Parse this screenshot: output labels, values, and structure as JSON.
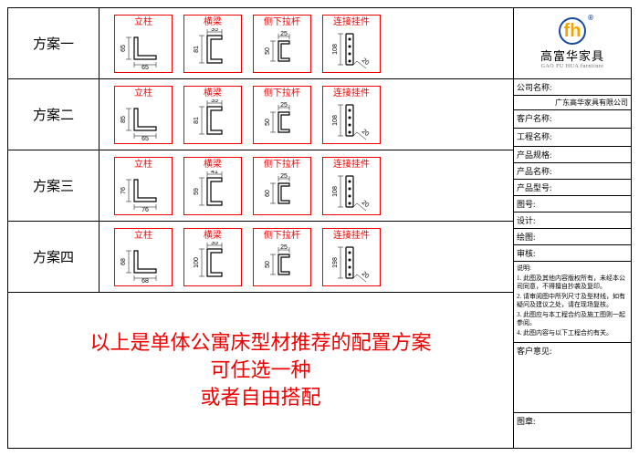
{
  "plans": [
    {
      "label": "方案一",
      "pillar_w": 65,
      "pillar_h": 65,
      "beam_w": 35,
      "beam_h": 81,
      "brace_w": 25,
      "brace_h": 50,
      "conn_w": 20,
      "conn_h": 108
    },
    {
      "label": "方案二",
      "pillar_w": 65,
      "pillar_h": 85,
      "beam_w": 35,
      "beam_h": 81,
      "brace_w": 25,
      "brace_h": 50,
      "conn_w": 20,
      "conn_h": 108
    },
    {
      "label": "方案三",
      "pillar_w": 76,
      "pillar_h": 76,
      "beam_w": 41,
      "beam_h": 59,
      "brace_w": 25,
      "brace_h": 60,
      "conn_w": 20,
      "conn_h": 108
    },
    {
      "label": "方案四",
      "pillar_w": 68,
      "pillar_h": 68,
      "beam_w": 35,
      "beam_h": 100,
      "brace_w": 25,
      "brace_h": 50,
      "conn_w": 20,
      "conn_h": 198
    }
  ],
  "component_titles": {
    "pillar": "立柱",
    "beam": "横梁",
    "brace": "侧下拉杆",
    "connector": "连接挂件"
  },
  "footer": {
    "line1": "以上是单体公寓床型材推荐的配置方案",
    "line2": "可任选一种",
    "line3": "或者自由搭配"
  },
  "logo": {
    "mark": "fh",
    "cn": "高富华家具",
    "en": "GAO FU HUA furniture"
  },
  "side": {
    "company_label": "公司名称:",
    "company_value": "广东高华家具有限公司",
    "customer_label": "客户名称:",
    "project_label": "工程名称:",
    "spec_label": "产品规格:",
    "product_label": "产品名称:",
    "type_label": "产品型号:",
    "drawing_no_label": "图号:",
    "designer_label": "设计:",
    "drafter_label": "绘图:",
    "checker_label": "审核:",
    "notes_title": "说明:",
    "note1": "1. 此图及其他内容版权所有，未经本公司同意，不得擅自抄袭及复印。",
    "note2": "2. 请审阅图中所列尺寸及型材线，如有疑问及建议之处，请在现场复核。",
    "note3": "3. 此图应与本工程合约及施工图则一起参阅。",
    "note4": "4. 此图内容与以下工程合约有关。",
    "remark_label": "客户意见:",
    "stamp_label": "图章:"
  },
  "colors": {
    "accent": "#e00",
    "border": "#000",
    "logo_ring": "#1a4aa0",
    "logo_letter": "#f5a300"
  }
}
